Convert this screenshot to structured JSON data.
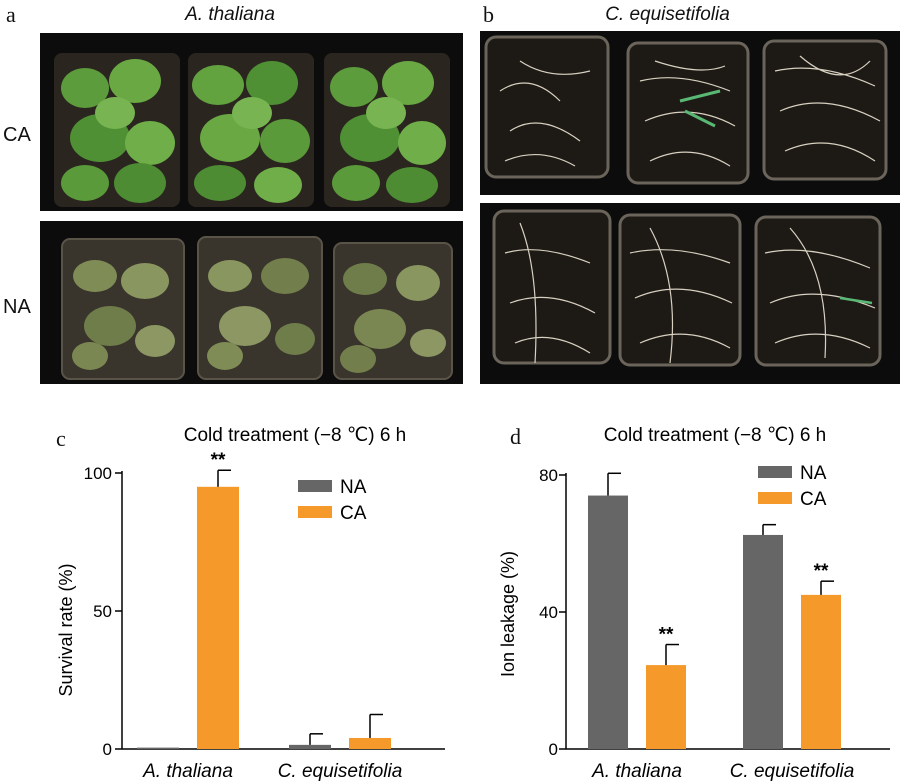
{
  "panels": {
    "a": {
      "label": "a",
      "title": "A. thaliana"
    },
    "b": {
      "label": "b",
      "title": "C. equisetifolia"
    },
    "c": {
      "label": "c"
    },
    "d": {
      "label": "d"
    }
  },
  "row_labels": {
    "top": "CA",
    "bottom": "NA"
  },
  "colors": {
    "NA": "#666666",
    "CA": "#f59a2a",
    "arabidopsis_leaf": "#5a9a3a",
    "soil": "#1a1714"
  },
  "chart_data": [
    {
      "id": "c",
      "type": "bar",
      "title": "Cold treatment (−8 ℃) 6 h",
      "xlabel": "",
      "ylabel": "Survival rate (%)",
      "ylim": [
        0,
        100
      ],
      "yticks": [
        "0",
        "50",
        "100"
      ],
      "categories": [
        "A. thaliana",
        "C. equisetifolia"
      ],
      "legend": "top-right",
      "series": [
        {
          "name": "NA",
          "color": "#666666",
          "values": [
            0.5,
            1.5
          ],
          "errors": [
            0,
            4
          ]
        },
        {
          "name": "CA",
          "color": "#f59a2a",
          "values": [
            95,
            4
          ],
          "errors": [
            6,
            8.5
          ]
        }
      ],
      "annotations": [
        {
          "category": 0,
          "series": 1,
          "text": "**"
        }
      ]
    },
    {
      "id": "d",
      "type": "bar",
      "title": "Cold treatment (−8 ℃) 6 h",
      "xlabel": "",
      "ylabel": "Ion leakage (%)",
      "ylim": [
        0,
        80
      ],
      "yticks": [
        "0",
        "40",
        "80"
      ],
      "categories": [
        "A. thaliana",
        "C. equisetifolia"
      ],
      "legend": "top-right",
      "series": [
        {
          "name": "NA",
          "color": "#666666",
          "values": [
            74,
            62.5
          ],
          "errors": [
            6.5,
            3
          ]
        },
        {
          "name": "CA",
          "color": "#f59a2a",
          "values": [
            24.5,
            45
          ],
          "errors": [
            6,
            4
          ]
        }
      ],
      "annotations": [
        {
          "category": 0,
          "series": 1,
          "text": "**"
        },
        {
          "category": 1,
          "series": 1,
          "text": "**"
        }
      ]
    }
  ]
}
